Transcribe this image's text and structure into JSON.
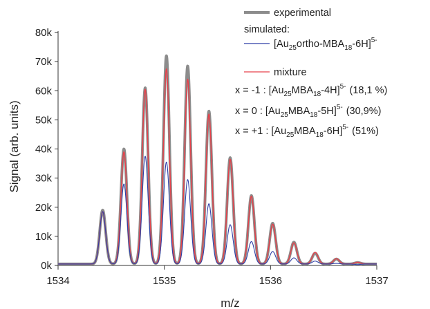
{
  "chart_data": {
    "type": "line",
    "xlabel": "m/z",
    "ylabel": "Signal (arb. units)",
    "xlim": [
      1534,
      1537
    ],
    "ylim": [
      0,
      80000
    ],
    "x_ticks": [
      {
        "value": 1534,
        "label": "1534"
      },
      {
        "value": 1535,
        "label": "1535"
      },
      {
        "value": 1536,
        "label": "1536"
      },
      {
        "value": 1537,
        "label": "1537"
      }
    ],
    "y_ticks": [
      {
        "value": 0,
        "label": "0k"
      },
      {
        "value": 10000,
        "label": "10k"
      },
      {
        "value": 20000,
        "label": "20k"
      },
      {
        "value": 30000,
        "label": "30k"
      },
      {
        "value": 40000,
        "label": "40k"
      },
      {
        "value": 50000,
        "label": "50k"
      },
      {
        "value": 60000,
        "label": "60k"
      },
      {
        "value": 70000,
        "label": "70k"
      },
      {
        "value": 80000,
        "label": "80k"
      }
    ],
    "grid": false,
    "peak_width": 0.028,
    "baseline": 500,
    "peaks_mz": [
      1534.42,
      1534.62,
      1534.82,
      1535.02,
      1535.22,
      1535.42,
      1535.62,
      1535.82,
      1536.02,
      1536.22,
      1536.42,
      1536.62,
      1536.82
    ],
    "series": [
      {
        "key": "experimental",
        "color": "#8c8c8c",
        "stroke_width": 4,
        "peak_values": [
          19000,
          40000,
          61000,
          72000,
          68500,
          53000,
          37000,
          24000,
          14500,
          8000,
          4200,
          2200,
          1000
        ]
      },
      {
        "key": "mixture",
        "color": "#e8414a",
        "stroke_width": 1.4,
        "peak_values": [
          18500,
          39000,
          60500,
          67500,
          64000,
          52000,
          36500,
          23800,
          14200,
          7800,
          4500,
          2300,
          1100
        ]
      },
      {
        "key": "au25_ortho",
        "color": "#2e3fa8",
        "stroke_width": 1.1,
        "peak_values": [
          18500,
          28000,
          37500,
          35500,
          29500,
          21200,
          14000,
          8200,
          4800,
          2600,
          1500,
          700,
          300
        ]
      }
    ]
  },
  "legend": {
    "experimental": "experimental",
    "simulated": "simulated:",
    "ortho": {
      "pre": "[Au",
      "sub1": "25",
      "mid": "ortho-MBA",
      "sub2": "18",
      "post": "-6H]",
      "sup": "5-"
    },
    "mixture": "mixture",
    "rows": [
      {
        "prefix": "x =  -1 :  [Au",
        "sub1": "25",
        "mid": "MBA",
        "sub2": "18",
        "post": "-4H]",
        "sup": "5-",
        "pct": "(18,1 %)"
      },
      {
        "prefix": "x =   0 :  [Au",
        "sub1": "25",
        "mid": "MBA",
        "sub2": "18",
        "post": "-5H]",
        "sup": "5-",
        "pct": "(30,9%)"
      },
      {
        "prefix": "x = +1 :  [Au",
        "sub1": "25",
        "mid": "MBA",
        "sub2": "18",
        "post": "-6H]",
        "sup": "5-",
        "pct": "(51%)"
      }
    ]
  }
}
